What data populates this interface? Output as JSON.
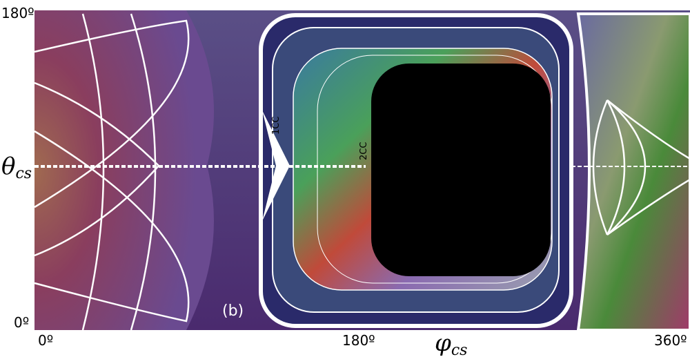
{
  "figure": {
    "panel_label": "(b)",
    "annotations": [
      "1CC",
      "2CC"
    ],
    "x_axis": {
      "symbol": "φ",
      "subscript": "cs",
      "ticks": [
        "0º",
        "180º",
        "360º"
      ]
    },
    "y_axis": {
      "symbol": "θ",
      "subscript": "cs",
      "ticks": [
        "180º",
        "0º"
      ]
    }
  }
}
